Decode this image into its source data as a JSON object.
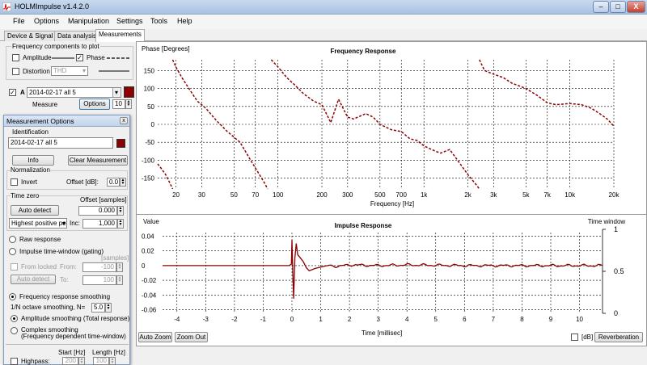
{
  "window": {
    "title": "HOLMImpulse  v1.4.2.0",
    "minimize": "–",
    "maximize": "□",
    "close": "X"
  },
  "menu": [
    "File",
    "Options",
    "Manipulation",
    "Settings",
    "Tools",
    "Help"
  ],
  "tabs": [
    "Device & Signal",
    "Data analysis",
    "Measurements"
  ],
  "freq_components": {
    "title": "Frequency components to plot",
    "amplitude": "Amplitude",
    "phase": "Phase",
    "phase_checked": true,
    "distortion": "Distortion",
    "distortion_select": "THD"
  },
  "measurement_row": {
    "letter": "A",
    "selected": "2014-02-17 all 5",
    "measure_label": "Measure",
    "options_label": "Options",
    "count": "10",
    "color": "#8b0000"
  },
  "options_window": {
    "title": "Measurement Options",
    "close": "x",
    "identification_label": "Identification",
    "identification_value": "2014-02-17 all 5",
    "info_button": "Info",
    "clear_button": "Clear Measurement",
    "normalization_label": "Normalization",
    "invert_label": "Invert",
    "offset_db_label": "Offset [dB]:",
    "offset_db_value": "0.0",
    "time_zero_label": "Time zero",
    "offset_samples_label": "Offset [samples]",
    "auto_detect": "Auto detect",
    "offset_value": "0.000",
    "peak_select": "Highest positive pe",
    "inc_label": "Inc:",
    "inc_value": "1,000",
    "raw_response": "Raw response",
    "impulse_window": "Impulse time-window (gating)",
    "samples_label": "[samples]",
    "from_locked": "From locked",
    "from_label": "From:",
    "from_value": "-100",
    "auto_detect2": "Auto detect",
    "to_label": "To:",
    "to_value": "100",
    "freq_smoothing": "Frequency response smoothing",
    "octave_label": "1/N octave smoothing, N=",
    "octave_value": "5.0",
    "amp_smoothing": "Amplitude smoothing (Total response)",
    "complex_smoothing": "Complex smoothing",
    "complex_smoothing_sub": "(Frequency dependent time-window)",
    "start_hz": "Start [Hz]",
    "length_hz": "Length [Hz]",
    "highpass": "Highpass:",
    "hp_start": "200",
    "hp_length": "100"
  },
  "freq_plot": {
    "title": "Frequency Response",
    "ylabel": "Phase [Degrees]",
    "xlabel": "Frequency [Hz]",
    "y_ticks": [
      "150",
      "100",
      "50",
      "0",
      "-50",
      "-100",
      "-150"
    ],
    "x_ticks": [
      "20",
      "30",
      "50",
      "70",
      "100",
      "200",
      "300",
      "500",
      "700",
      "1k",
      "2k",
      "3k",
      "5k",
      "7k",
      "10k",
      "20k"
    ]
  },
  "impulse_plot": {
    "title": "Impulse Response",
    "ylabel": "Value",
    "xlabel": "Time [millisec]",
    "right_label": "Time window",
    "y_ticks": [
      "0.04",
      "0.02",
      "0",
      "-0.02",
      "-0.04",
      "-0.06"
    ],
    "x_ticks": [
      "-4",
      "-3",
      "-2",
      "-1",
      "0",
      "1",
      "2",
      "3",
      "4",
      "5",
      "6",
      "7",
      "8",
      "9",
      "10"
    ],
    "right_ticks": [
      "1",
      "0.5",
      "0"
    ]
  },
  "bottom": {
    "auto_zoom": "Auto Zoom",
    "zoom_out": "Zoom Out",
    "db_label": "[dB]",
    "reverberation": "Reverberation"
  },
  "chart_data": [
    {
      "type": "line",
      "title": "Frequency Response",
      "xlabel": "Frequency [Hz]",
      "ylabel": "Phase [Degrees]",
      "x_scale": "log",
      "xlim": [
        15,
        20000
      ],
      "ylim": [
        -180,
        180
      ],
      "grid": true,
      "series": [
        {
          "color": "#8b0000",
          "style": "dashed",
          "segments": [
            [
              [
                15,
                -110
              ],
              [
                16,
                -125
              ],
              [
                17,
                -140
              ],
              [
                18,
                -160
              ],
              [
                19,
                -180
              ]
            ],
            [
              [
                19,
                180
              ],
              [
                20,
                160
              ],
              [
                22,
                130
              ],
              [
                25,
                95
              ],
              [
                28,
                65
              ],
              [
                32,
                45
              ],
              [
                38,
                10
              ],
              [
                45,
                -20
              ],
              [
                55,
                -50
              ],
              [
                65,
                -100
              ],
              [
                80,
                -160
              ],
              [
                85,
                -180
              ]
            ],
            [
              [
                90,
                180
              ],
              [
                100,
                160
              ],
              [
                115,
                130
              ],
              [
                130,
                110
              ],
              [
                150,
                85
              ],
              [
                175,
                65
              ],
              [
                200,
                55
              ],
              [
                230,
                5
              ],
              [
                260,
                70
              ],
              [
                300,
                20
              ],
              [
                330,
                15
              ],
              [
                400,
                30
              ],
              [
                450,
                20
              ],
              [
                500,
                0
              ],
              [
                600,
                -15
              ],
              [
                700,
                -20
              ],
              [
                800,
                -40
              ],
              [
                900,
                -45
              ],
              [
                1000,
                -60
              ],
              [
                1200,
                -75
              ],
              [
                1300,
                -80
              ],
              [
                1500,
                -70
              ],
              [
                1700,
                -100
              ],
              [
                2000,
                -140
              ],
              [
                2300,
                -170
              ],
              [
                2400,
                -180
              ]
            ],
            [
              [
                2400,
                180
              ],
              [
                2600,
                150
              ],
              [
                3000,
                140
              ],
              [
                3500,
                130
              ],
              [
                4000,
                115
              ],
              [
                5000,
                100
              ],
              [
                6000,
                80
              ],
              [
                7000,
                60
              ],
              [
                8000,
                55
              ],
              [
                10000,
                58
              ],
              [
                12000,
                55
              ],
              [
                14000,
                45
              ],
              [
                16000,
                30
              ],
              [
                18000,
                15
              ],
              [
                20000,
                -5
              ]
            ]
          ]
        }
      ]
    },
    {
      "type": "line",
      "title": "Impulse Response",
      "xlabel": "Time [millisec]",
      "ylabel": "Value",
      "xlim": [
        -4.5,
        10.8
      ],
      "ylim": [
        -0.065,
        0.045
      ],
      "grid": true,
      "series": [
        {
          "color": "#8b0000",
          "points": [
            [
              -4.5,
              0
            ],
            [
              -0.1,
              0
            ],
            [
              -0.02,
              0.002
            ],
            [
              0,
              0.035
            ],
            [
              0.03,
              -0.01
            ],
            [
              0.06,
              -0.045
            ],
            [
              0.1,
              0.01
            ],
            [
              0.15,
              0.03
            ],
            [
              0.2,
              0.015
            ],
            [
              0.3,
              0.01
            ],
            [
              0.4,
              0.005
            ],
            [
              0.5,
              -0.003
            ],
            [
              0.6,
              -0.007
            ],
            [
              0.8,
              -0.004
            ],
            [
              1,
              -0.002
            ],
            [
              1.3,
              0
            ],
            [
              1.6,
              -0.001
            ],
            [
              2,
              0.001
            ],
            [
              3,
              0
            ],
            [
              4,
              0.001
            ],
            [
              6,
              0
            ],
            [
              8,
              0
            ],
            [
              10.8,
              0
            ]
          ]
        }
      ]
    }
  ]
}
